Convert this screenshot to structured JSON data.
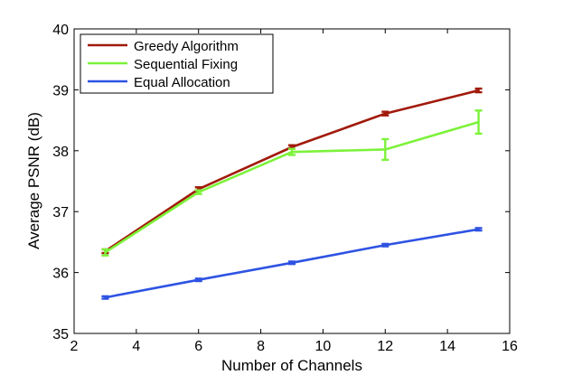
{
  "chart_data": {
    "type": "line",
    "title": "",
    "xlabel": "Number of Channels",
    "ylabel": "Average PSNR (dB)",
    "xlim": [
      2,
      16
    ],
    "ylim": [
      35,
      40
    ],
    "xticks": [
      2,
      4,
      6,
      8,
      10,
      12,
      14,
      16
    ],
    "yticks": [
      35,
      36,
      37,
      38,
      39,
      40
    ],
    "grid": false,
    "legend_position": "top-left",
    "x": [
      3,
      6,
      9,
      12,
      15
    ],
    "series": [
      {
        "name": "Greedy Algorithm",
        "color": "#a11a0a",
        "values": [
          36.35,
          37.37,
          38.06,
          38.61,
          38.99
        ],
        "errors": [
          0.03,
          0.03,
          0.03,
          0.03,
          0.03
        ]
      },
      {
        "name": "Sequential Fixing",
        "color": "#7cf23a",
        "values": [
          36.33,
          37.32,
          37.98,
          38.02,
          38.47
        ],
        "errors": [
          0.05,
          0.03,
          0.05,
          0.17,
          0.19
        ]
      },
      {
        "name": "Equal Allocation",
        "color": "#2e53e3",
        "values": [
          35.59,
          35.88,
          36.16,
          36.45,
          36.71
        ],
        "errors": [
          0.02,
          0.02,
          0.02,
          0.02,
          0.02
        ]
      }
    ]
  }
}
